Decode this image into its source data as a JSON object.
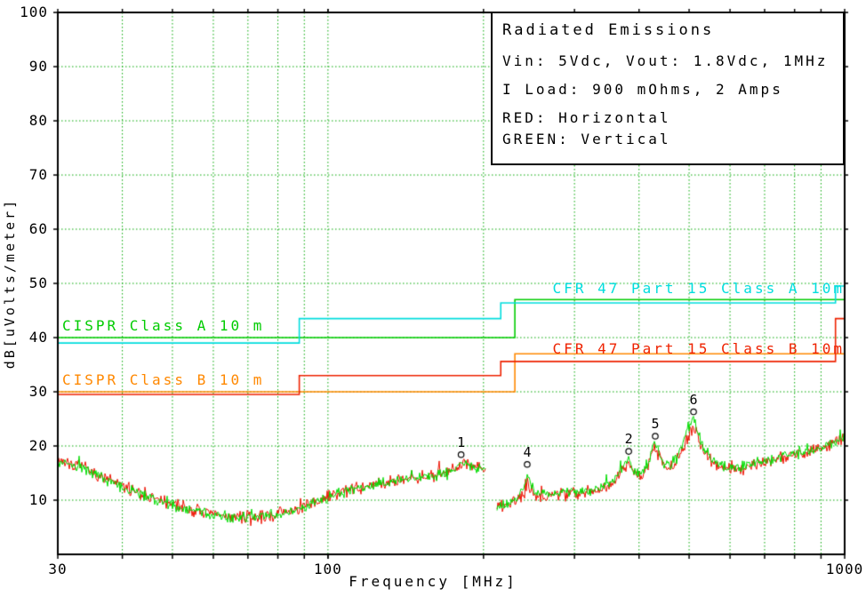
{
  "figure": {
    "bg": "#ffffff",
    "frame_color": "#000000",
    "grid_color": "#00a800",
    "text_color": "#000000"
  },
  "legend": {
    "title": "Radiated Emissions",
    "lines": [
      "Vin: 5Vdc, Vout: 1.8Vdc, 1MHz",
      "I Load: 900 mOhms, 2 Amps",
      "RED: Horizontal",
      "GREEN: Vertical"
    ]
  },
  "chart_data": {
    "type": "line",
    "title": "Radiated Emissions",
    "xlabel": "Frequency [MHz]",
    "ylabel": "dB[uVolts/meter]",
    "x_scale": "log",
    "xlim": [
      30,
      1000
    ],
    "ylim": [
      0,
      100
    ],
    "grid": true,
    "x_ticks": [
      {
        "value": 30,
        "label": "30"
      },
      {
        "value": 100,
        "label": "100"
      },
      {
        "value": 1000,
        "label": "1000"
      }
    ],
    "x_grid": [
      40,
      50,
      60,
      70,
      80,
      90,
      100,
      200,
      300,
      400,
      500,
      600,
      700,
      800,
      900
    ],
    "y_ticks": [
      {
        "value": 100,
        "label": "100"
      },
      {
        "value": 90,
        "label": "90"
      },
      {
        "value": 80,
        "label": "80"
      },
      {
        "value": 70,
        "label": "70"
      },
      {
        "value": 60,
        "label": "60"
      },
      {
        "value": 50,
        "label": "50"
      },
      {
        "value": 40,
        "label": "40"
      },
      {
        "value": 30,
        "label": "30"
      },
      {
        "value": 20,
        "label": "20"
      },
      {
        "value": 10,
        "label": "10"
      }
    ],
    "limits": [
      {
        "id": "cispr-class-a",
        "label": "CISPR Class A 10 m",
        "color": "#00cc00",
        "points": [
          [
            30,
            40
          ],
          [
            230,
            40
          ],
          [
            230,
            47
          ],
          [
            1000,
            47
          ]
        ],
        "label_anchor": {
          "f": 30.6,
          "dB": 40.6,
          "align": "left"
        }
      },
      {
        "id": "cispr-class-b",
        "label": "CISPR Class B 10 m",
        "color": "#ff8800",
        "points": [
          [
            30,
            30
          ],
          [
            230,
            30
          ],
          [
            230,
            37
          ],
          [
            1000,
            37
          ]
        ],
        "label_anchor": {
          "f": 30.6,
          "dB": 30.6,
          "align": "left"
        }
      },
      {
        "id": "cfr47-class-a",
        "label": "CFR 47 Part 15  Class A 10m",
        "color": "#00dddd",
        "points": [
          [
            30,
            39
          ],
          [
            88,
            39
          ],
          [
            88,
            43.5
          ],
          [
            216,
            43.5
          ],
          [
            216,
            46.4
          ],
          [
            960,
            46.4
          ],
          [
            960,
            49.5
          ],
          [
            1000,
            49.5
          ]
        ],
        "label_anchor": {
          "f": 1000,
          "dB": 47.6,
          "align": "right"
        }
      },
      {
        "id": "cfr47-class-b",
        "label": "CFR 47 Part 15  Class B 10m",
        "color": "#ee2200",
        "points": [
          [
            30,
            29.5
          ],
          [
            88,
            29.5
          ],
          [
            88,
            33
          ],
          [
            216,
            33
          ],
          [
            216,
            35.6
          ],
          [
            960,
            35.6
          ],
          [
            960,
            43.5
          ],
          [
            1000,
            43.5
          ]
        ],
        "label_anchor": {
          "f": 1000,
          "dB": 36.4,
          "align": "right"
        }
      }
    ],
    "markers": [
      {
        "label": "1",
        "f": 181,
        "dB": 18.4
      },
      {
        "label": "4",
        "f": 243,
        "dB": 16.6
      },
      {
        "label": "2",
        "f": 382,
        "dB": 19.0
      },
      {
        "label": "5",
        "f": 430,
        "dB": 21.8
      },
      {
        "label": "6",
        "f": 510,
        "dB": 26.3
      }
    ],
    "series": [
      {
        "name": "Horizontal",
        "color": "#ee1100",
        "noise": 1.4,
        "seed": 7,
        "segments": [
          [
            [
              30,
              17.5
            ],
            [
              33,
              16.2
            ],
            [
              36,
              14.6
            ],
            [
              40,
              12.6
            ],
            [
              45,
              10.6
            ],
            [
              50,
              9.2
            ],
            [
              55,
              8.1
            ],
            [
              60,
              7.4
            ],
            [
              65,
              7.0
            ],
            [
              70,
              6.8
            ],
            [
              75,
              7.0
            ],
            [
              80,
              7.4
            ],
            [
              85,
              8.1
            ],
            [
              90,
              8.9
            ],
            [
              95,
              9.7
            ],
            [
              100,
              10.5
            ],
            [
              110,
              11.7
            ],
            [
              120,
              12.7
            ],
            [
              130,
              13.4
            ],
            [
              140,
              14.0
            ],
            [
              150,
              14.3
            ],
            [
              160,
              14.6
            ],
            [
              170,
              15.3
            ],
            [
              176,
              16.0
            ],
            [
              181,
              17.0
            ],
            [
              186,
              16.6
            ],
            [
              192,
              16.0
            ],
            [
              202,
              15.6
            ]
          ],
          [
            [
              212,
              8.8
            ],
            [
              222,
              9.2
            ],
            [
              232,
              9.9
            ],
            [
              239,
              11.0
            ],
            [
              243,
              13.0
            ],
            [
              249,
              11.3
            ],
            [
              258,
              10.8
            ],
            [
              270,
              10.9
            ],
            [
              285,
              11.1
            ],
            [
              300,
              11.3
            ],
            [
              320,
              11.8
            ],
            [
              340,
              12.3
            ],
            [
              360,
              13.6
            ],
            [
              374,
              15.8
            ],
            [
              382,
              17.2
            ],
            [
              390,
              15.3
            ],
            [
              400,
              14.2
            ],
            [
              414,
              16.0
            ],
            [
              425,
              18.6
            ],
            [
              430,
              19.6
            ],
            [
              436,
              18.6
            ],
            [
              446,
              16.4
            ],
            [
              460,
              16.0
            ],
            [
              476,
              17.6
            ],
            [
              490,
              20.2
            ],
            [
              502,
              22.6
            ],
            [
              510,
              23.2
            ],
            [
              520,
              21.6
            ],
            [
              532,
              19.2
            ],
            [
              548,
              17.4
            ],
            [
              565,
              16.4
            ],
            [
              585,
              16.0
            ],
            [
              610,
              15.8
            ],
            [
              640,
              16.0
            ],
            [
              670,
              16.6
            ],
            [
              710,
              17.1
            ],
            [
              760,
              17.9
            ],
            [
              810,
              18.4
            ],
            [
              860,
              19.0
            ],
            [
              910,
              19.6
            ],
            [
              955,
              20.6
            ],
            [
              1000,
              21.6
            ]
          ]
        ]
      },
      {
        "name": "Vertical",
        "color": "#00dd00",
        "noise": 1.2,
        "seed": 99,
        "segments": [
          [
            [
              30,
              17.3
            ],
            [
              33,
              16.0
            ],
            [
              36,
              14.4
            ],
            [
              40,
              12.4
            ],
            [
              45,
              10.4
            ],
            [
              50,
              9.0
            ],
            [
              55,
              8.0
            ],
            [
              60,
              7.3
            ],
            [
              65,
              6.9
            ],
            [
              70,
              6.7
            ],
            [
              75,
              6.9
            ],
            [
              80,
              7.3
            ],
            [
              85,
              8.0
            ],
            [
              90,
              8.8
            ],
            [
              95,
              9.6
            ],
            [
              100,
              10.4
            ],
            [
              110,
              11.6
            ],
            [
              120,
              12.6
            ],
            [
              130,
              13.3
            ],
            [
              140,
              13.9
            ],
            [
              150,
              14.2
            ],
            [
              160,
              14.5
            ],
            [
              170,
              15.2
            ],
            [
              176,
              15.9
            ],
            [
              181,
              16.9
            ],
            [
              186,
              16.5
            ],
            [
              192,
              15.9
            ],
            [
              202,
              15.5
            ]
          ],
          [
            [
              212,
              8.9
            ],
            [
              222,
              9.4
            ],
            [
              232,
              10.1
            ],
            [
              239,
              11.8
            ],
            [
              243,
              14.6
            ],
            [
              249,
              12.2
            ],
            [
              258,
              11.0
            ],
            [
              270,
              11.1
            ],
            [
              285,
              11.3
            ],
            [
              300,
              11.5
            ],
            [
              320,
              12.0
            ],
            [
              340,
              12.5
            ],
            [
              360,
              13.9
            ],
            [
              374,
              16.3
            ],
            [
              382,
              17.5
            ],
            [
              390,
              15.6
            ],
            [
              400,
              14.5
            ],
            [
              414,
              16.5
            ],
            [
              425,
              19.4
            ],
            [
              430,
              20.6
            ],
            [
              436,
              19.4
            ],
            [
              446,
              16.9
            ],
            [
              460,
              16.4
            ],
            [
              476,
              18.1
            ],
            [
              490,
              21.6
            ],
            [
              502,
              24.2
            ],
            [
              510,
              24.9
            ],
            [
              520,
              22.6
            ],
            [
              532,
              19.8
            ],
            [
              548,
              17.8
            ],
            [
              565,
              16.8
            ],
            [
              585,
              16.2
            ],
            [
              610,
              16.0
            ],
            [
              640,
              16.2
            ],
            [
              670,
              16.8
            ],
            [
              710,
              17.3
            ],
            [
              760,
              18.1
            ],
            [
              810,
              18.6
            ],
            [
              860,
              19.2
            ],
            [
              910,
              19.8
            ],
            [
              955,
              20.8
            ],
            [
              1000,
              22.0
            ]
          ]
        ]
      }
    ]
  }
}
